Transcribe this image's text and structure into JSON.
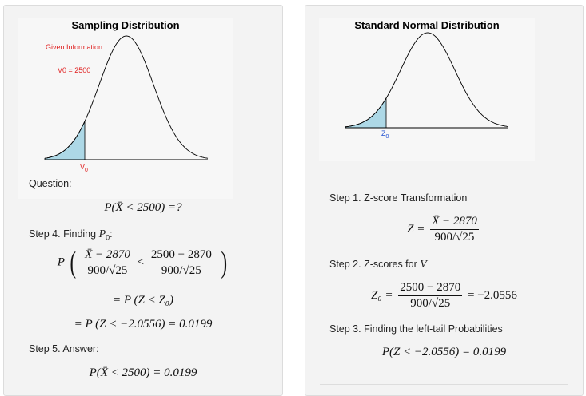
{
  "left_panel": {
    "plot": {
      "title": "Sampling Distribution",
      "given_label": "Given Information",
      "given_value": "V0 = 2500",
      "marker_label": "V",
      "marker_sub": "0"
    },
    "question_label": "Question:",
    "question_formula": "P(X̄ < 2500) =?",
    "step4_label": "Step 4. Finding",
    "step4_var": "P",
    "step4_sub": "0",
    "step4_colon": ":",
    "step4_line1": {
      "prefix": "P",
      "num1": "X̄ − 2870",
      "den1": "900/√25",
      "op": "<",
      "num2": "2500 − 2870",
      "den2": "900/√25"
    },
    "step4_line2": "= P (Z < Z₀)",
    "step4_line3": "= P (Z < −2.0556) = 0.0199",
    "step5_label": "Step 5. Answer:",
    "step5_formula": "P(X̄ < 2500) = 0.0199"
  },
  "right_panel": {
    "plot": {
      "title": "Standard Normal Distribution",
      "marker_label": "Z",
      "marker_sub": "0"
    },
    "step1_label": "Step 1. Z-score Transformation",
    "step1_formula": {
      "lhs": "Z =",
      "num": "X̄ − 2870",
      "den": "900/√25"
    },
    "step2_label": "Step 2. Z-scores for",
    "step2_var": "V",
    "step2_formula": {
      "lhs": "Z₀ =",
      "num": "2500 − 2870",
      "den": "900/√25",
      "rhs": "= −2.0556"
    },
    "step3_label": "Step 3. Finding the left-tail Probabilities",
    "step3_formula": "P(Z < −2.0556) = 0.0199"
  },
  "colors": {
    "shade": "#add8e6",
    "given_text": "#e02020",
    "z_marker": "#1f4fd0",
    "panel_bg": "#f3f3f3"
  }
}
